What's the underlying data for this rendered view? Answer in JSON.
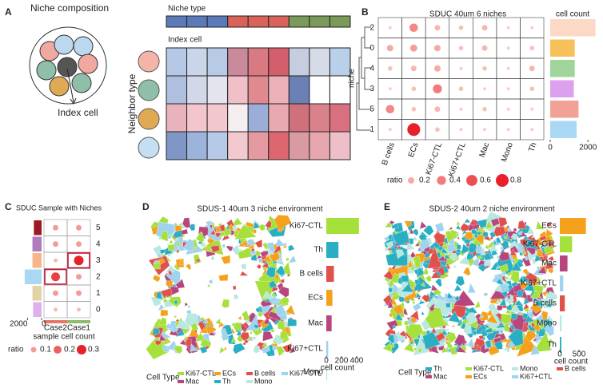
{
  "panel_a": {
    "label": "A",
    "title": "Niche composition",
    "index_cell_note": "Index cell",
    "niche_type": "Niche type",
    "index_cell": "Index cell",
    "neighbor_type": "Neighbor type"
  },
  "panel_b": {
    "label": "B",
    "title": "SDUC 40um 6 niches",
    "y_label": "niche",
    "rows": [
      "2",
      "0",
      "4",
      "3",
      "5",
      "1"
    ],
    "columns": [
      "B cells",
      "ECs",
      "Ki67-CTL",
      "Ki67+CTL",
      "Mac",
      "Mono",
      "Th"
    ],
    "values": [
      [
        0.05,
        0.35,
        0.15,
        0.1,
        0.15,
        0.05,
        0.05
      ],
      [
        0.2,
        0.25,
        0.2,
        0.1,
        0.15,
        0.05,
        0.1
      ],
      [
        0.1,
        0.15,
        0.2,
        0.05,
        0.1,
        0.05,
        0.15
      ],
      [
        0.05,
        0.1,
        0.4,
        0.1,
        0.05,
        0.05,
        0.1
      ],
      [
        0.35,
        0.1,
        0.15,
        0.05,
        0.1,
        0.05,
        0.05
      ],
      [
        0.05,
        0.8,
        0.1,
        0.05,
        0.05,
        0.05,
        0.05
      ]
    ],
    "ratio_legend": {
      "label": "ratio",
      "values": [
        0.2,
        0.4,
        0.6,
        0.8
      ]
    },
    "bars": {
      "title": "cell count",
      "values": [
        2400,
        1300,
        1300,
        1250,
        1500,
        1400
      ],
      "colors": [
        "#fbd9c6",
        "#f6c15a",
        "#9fd59a",
        "#dda0ee",
        "#f2a196",
        "#a9d8f5"
      ],
      "xlim": [
        0,
        2500
      ],
      "xticks": [
        0,
        2000
      ]
    }
  },
  "panel_c": {
    "label": "C",
    "title": "SDUC Sample with Niches",
    "rows": [
      "5",
      "4",
      "3",
      "2",
      "1",
      "0"
    ],
    "columns": [
      "Case2",
      "Case1"
    ],
    "column_colors": [
      "#e8756a",
      "#8fbc6a"
    ],
    "values": [
      [
        0.1,
        0.1
      ],
      [
        0.1,
        0.1
      ],
      [
        0.05,
        0.3
      ],
      [
        0.25,
        0.1
      ],
      [
        0.1,
        0.1
      ],
      [
        0.05,
        0.05
      ]
    ],
    "ratio_legend": {
      "label": "ratio",
      "values": [
        0.1,
        0.2,
        0.3
      ]
    },
    "bars": {
      "title": "sample cell count",
      "values": [
        1100,
        1300,
        1300,
        2400,
        1300,
        1200
      ],
      "colors": [
        "#9b1b25",
        "#b07cc0",
        "#f7b58a",
        "#a9d8f5",
        "#e3d2a4",
        "#ddb0ee"
      ],
      "xlim": [
        0,
        2500
      ],
      "xticks": [
        2000,
        0
      ]
    }
  },
  "panel_d": {
    "label": "D",
    "title": "SDUS-1 40um 3 niche environment",
    "bars": {
      "title": "cell count",
      "categories": [
        "Ki67-CTL",
        "Th",
        "B cells",
        "ECs",
        "Mac",
        "Ki67+CTL",
        "Mono"
      ],
      "values": [
        430,
        160,
        100,
        80,
        70,
        25,
        12
      ],
      "colors": [
        "#a6e03a",
        "#29aec4",
        "#e0514c",
        "#f4a21c",
        "#b8467e",
        "#9fd3ee",
        "#b8e8e0"
      ],
      "xlim": [
        0,
        450
      ],
      "xticks": [
        0,
        200,
        400
      ]
    },
    "legend": {
      "title": "Cell Type",
      "items": [
        {
          "name": "Ki67-CTL",
          "color": "#a6e03a"
        },
        {
          "name": "ECs",
          "color": "#f4a21c"
        },
        {
          "name": "B cells",
          "color": "#e0514c"
        },
        {
          "name": "Ki67+CTL",
          "color": "#9fd3ee"
        },
        {
          "name": "Mac",
          "color": "#b8467e"
        },
        {
          "name": "Th",
          "color": "#29aec4"
        },
        {
          "name": "Mono",
          "color": "#b8e8e0"
        }
      ]
    }
  },
  "panel_e": {
    "label": "E",
    "title": "SDUS-2 40um 2 niche environment",
    "bars": {
      "title": "cell count",
      "categories": [
        "ECs",
        "Ki67-CTL",
        "Mac",
        "Ki67+CTL",
        "B cells",
        "Mono",
        "Th"
      ],
      "values": [
        680,
        320,
        200,
        90,
        130,
        45,
        40
      ],
      "colors": [
        "#f4a21c",
        "#a6e03a",
        "#b8467e",
        "#9fd3ee",
        "#e0514c",
        "#b8e8e0",
        "#29aec4"
      ],
      "xlim": [
        0,
        700
      ],
      "xticks": [
        0,
        500
      ]
    },
    "legend": {
      "title": "Cell Type",
      "items": [
        {
          "name": "Th",
          "color": "#29aec4"
        },
        {
          "name": "Ki67-CTL",
          "color": "#a6e03a"
        },
        {
          "name": "Mono",
          "color": "#b8e8e0"
        },
        {
          "name": "B cells",
          "color": "#e0514c"
        },
        {
          "name": "Mac",
          "color": "#b8467e"
        },
        {
          "name": "ECs",
          "color": "#f4a21c"
        },
        {
          "name": "Ki67+CTL",
          "color": "#9fd3ee"
        }
      ]
    }
  }
}
